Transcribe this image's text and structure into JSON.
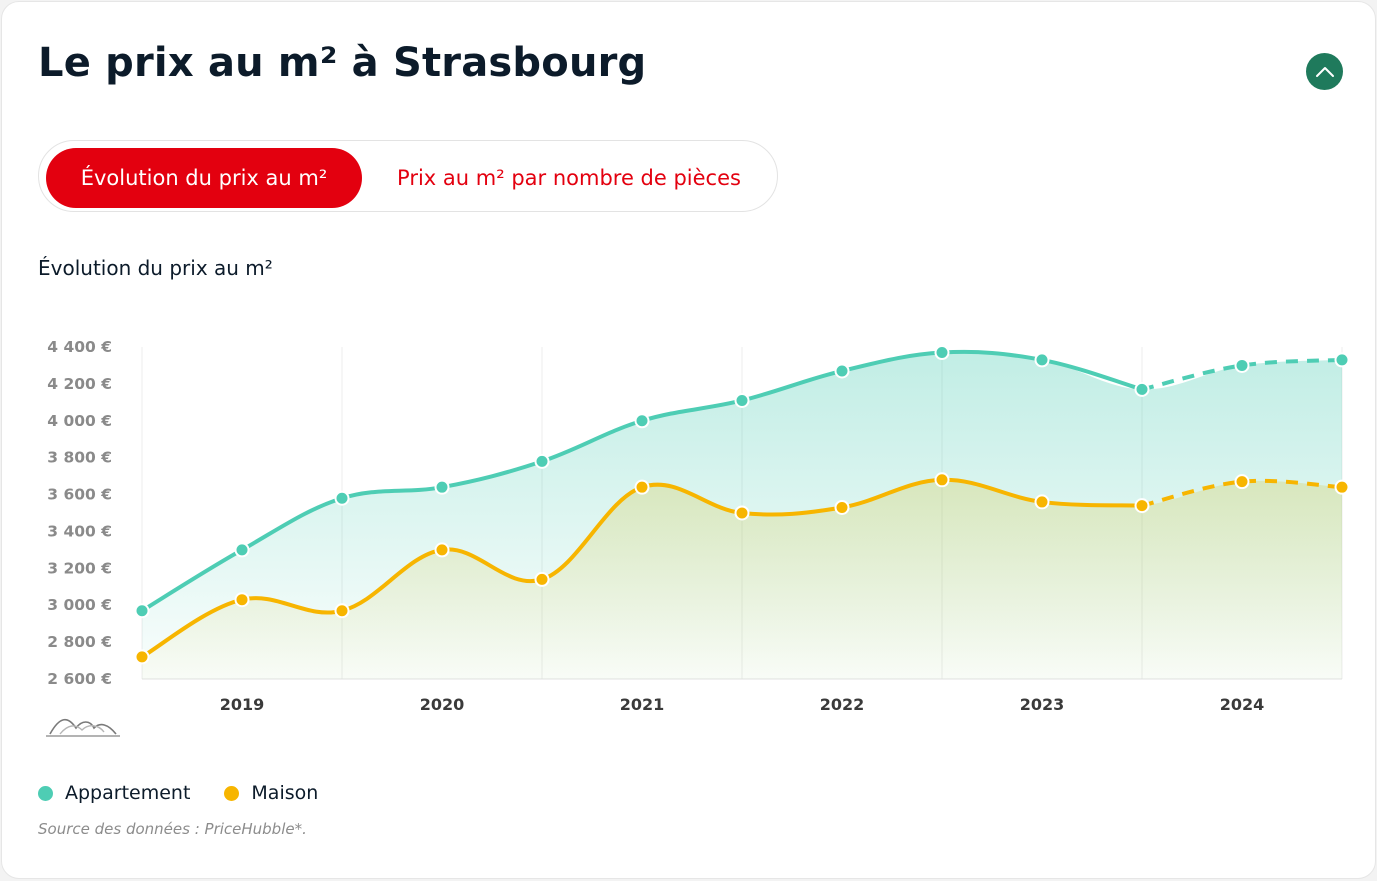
{
  "header": {
    "title": "Le prix au m² à Strasbourg",
    "collapse_icon": "chevron-up-icon"
  },
  "tabs": [
    {
      "label": "Évolution du prix au m²",
      "active": true
    },
    {
      "label": "Prix au m² par nombre de pièces",
      "active": false
    }
  ],
  "section": {
    "title": "Évolution du prix au m²"
  },
  "legend": [
    {
      "label": "Appartement",
      "color": "#4ecdb4"
    },
    {
      "label": "Maison",
      "color": "#f7b500"
    }
  ],
  "source": "Source des données : PriceHubble*.",
  "chart_data": {
    "type": "line",
    "x_labels": [
      "2019",
      "2020",
      "2021",
      "2022",
      "2023",
      "2024"
    ],
    "y_tick_labels": [
      "2 600 €",
      "2 800 €",
      "3 000 €",
      "3 200 €",
      "3 400 €",
      "3 600 €",
      "3 800 €",
      "4 000 €",
      "4 200 €",
      "4 400 €"
    ],
    "ylim": [
      2600,
      4400
    ],
    "x_period": [
      "2019-S1",
      "2019-S2",
      "2020-S1",
      "2020-S2",
      "2021-S1",
      "2021-S2",
      "2022-S1",
      "2022-S2",
      "2023-S1",
      "2023-S2",
      "2024-S1",
      "2024-S2",
      "2025-S1"
    ],
    "series": [
      {
        "name": "Appartement",
        "color": "#4ecdb4",
        "values": [
          2970,
          3300,
          3580,
          3640,
          3780,
          4000,
          4110,
          4270,
          4370,
          4330,
          4170,
          4300,
          4330
        ],
        "forecast_from_index": 10
      },
      {
        "name": "Maison",
        "color": "#f7b500",
        "values": [
          2720,
          3030,
          2970,
          3300,
          3140,
          3640,
          3500,
          3530,
          3680,
          3560,
          3540,
          3670,
          3640
        ],
        "forecast_from_index": 10
      }
    ],
    "grid": true
  }
}
